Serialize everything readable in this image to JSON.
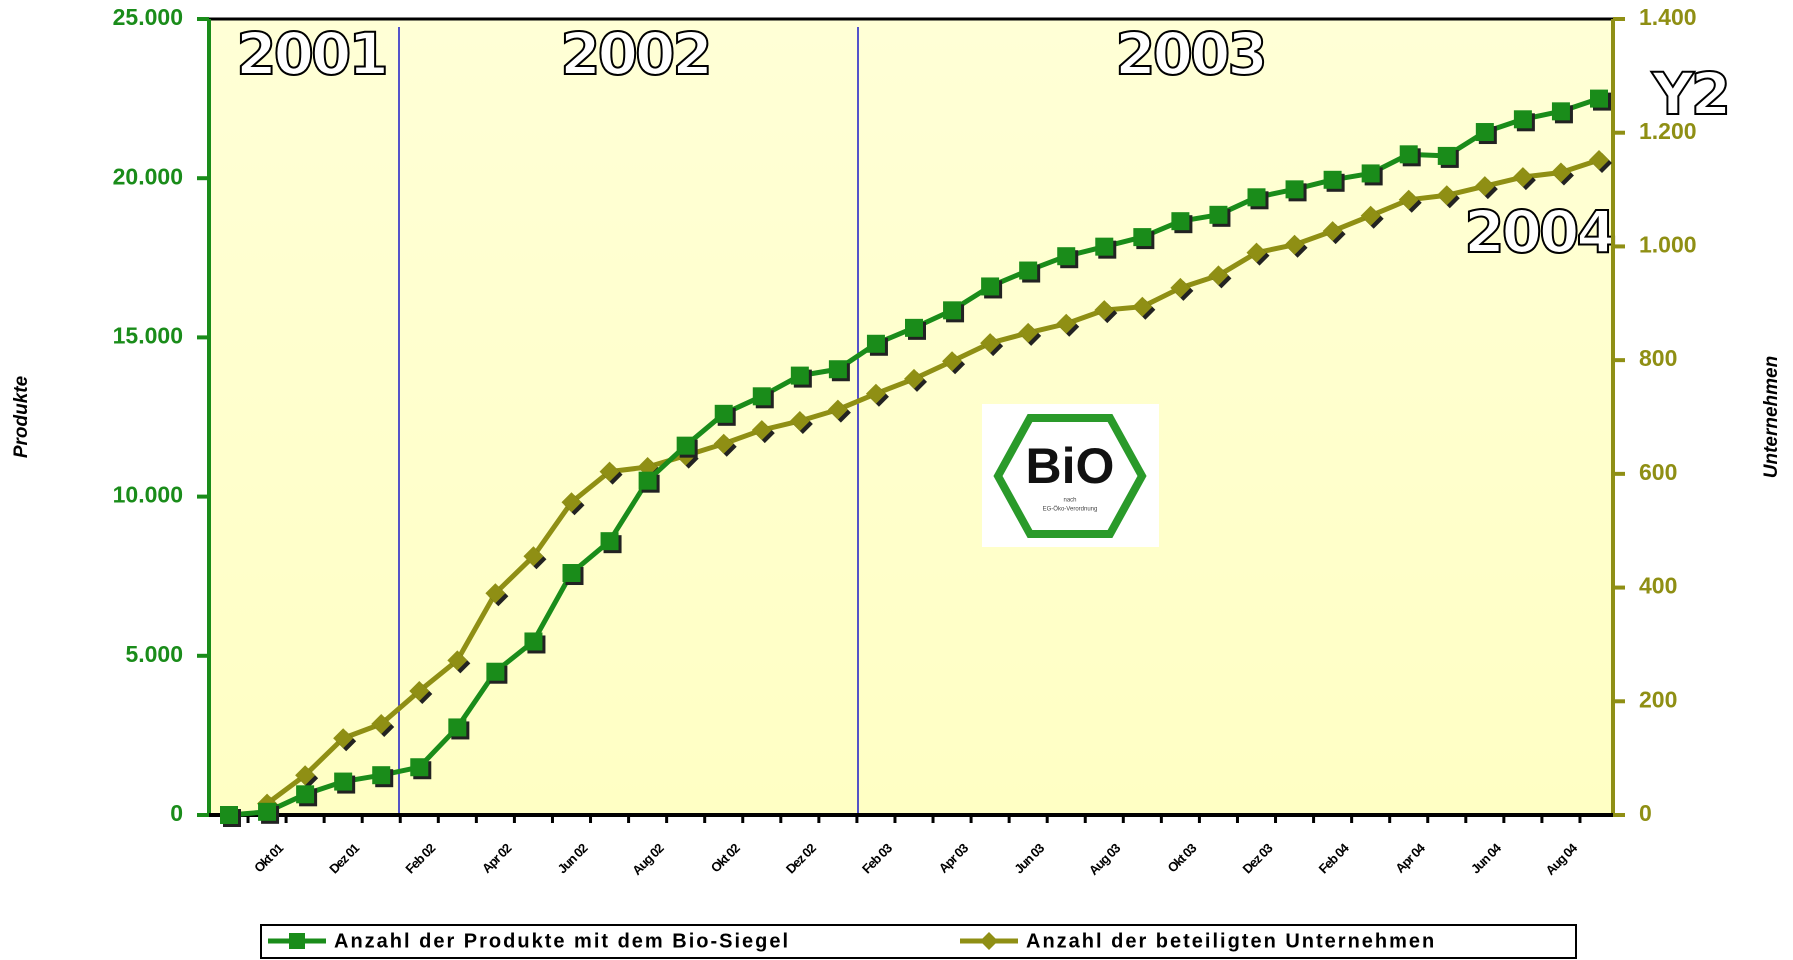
{
  "chart_data": {
    "type": "line",
    "categories": [
      null,
      "Okt 01",
      null,
      "Dez 01",
      null,
      "Feb 02",
      null,
      "Apr 02",
      null,
      "Jun 02",
      null,
      "Aug 02",
      null,
      "Okt 02",
      null,
      "Dez 02",
      null,
      "Feb 03",
      null,
      "Apr 03",
      null,
      "Jun 03",
      null,
      "Aug 03",
      null,
      "Okt 03",
      null,
      "Dez 03",
      null,
      "Feb 04",
      null,
      "Apr 04",
      null,
      "Jun 04",
      null,
      "Aug 04",
      null
    ],
    "series": [
      {
        "name": "Anzahl der Produkte mit dem Bio-Siegel",
        "color": "#1a8c1a",
        "marker": "square",
        "values": [
          0,
          100,
          650,
          1050,
          1250,
          1500,
          2750,
          4500,
          5450,
          7600,
          8600,
          10500,
          11600,
          12600,
          13150,
          13800,
          14000,
          14800,
          15300,
          15850,
          16600,
          17100,
          17550,
          17850,
          18150,
          18650,
          18850,
          19400,
          19650,
          19950,
          20150,
          20750,
          20700,
          21450,
          21850,
          22100,
          22500
        ]
      },
      {
        "name": "Anzahl der beteiligten Unternehmen",
        "color": "#8f8f14",
        "marker": "diamond",
        "axis": "y2",
        "values": [
          null,
          20,
          70,
          135,
          160,
          218,
          272,
          390,
          455,
          550,
          604,
          612,
          632,
          653,
          677,
          693,
          713,
          741,
          767,
          798,
          830,
          848,
          864,
          888,
          894,
          927,
          949,
          989,
          1003,
          1027,
          1054,
          1082,
          1090,
          1106,
          1122,
          1130,
          1152
        ]
      }
    ],
    "ylabel": "Produkte",
    "y2label": "Unternehmen",
    "ylim": [
      0,
      25000
    ],
    "yticks": [
      0,
      {
        "value": 5000,
        "label": "5.000"
      },
      {
        "value": 10000,
        "label": "10.000"
      },
      {
        "value": 15000,
        "label": "15.000"
      },
      {
        "value": 20000,
        "label": "20.000"
      },
      {
        "value": 25000,
        "label": "25.000"
      }
    ],
    "y2lim": [
      0,
      1400
    ],
    "y2ticks": [
      0,
      200,
      400,
      600,
      800,
      {
        "value": 1000,
        "label": "1.000"
      },
      {
        "value": 1200,
        "label": "1.200"
      },
      {
        "value": 1400,
        "label": "1.400"
      }
    ],
    "annotations": [
      "2001",
      "2002",
      "2003",
      "2004",
      "Y2"
    ],
    "logo": {
      "text": "BiO",
      "line1": "nach",
      "line2": "EG-Öko-Verordnung"
    },
    "legend": "bottom"
  }
}
